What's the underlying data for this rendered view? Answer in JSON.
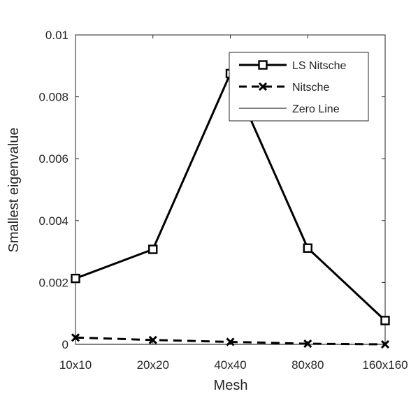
{
  "chart_data": {
    "type": "line",
    "categories": [
      "10x10",
      "20x20",
      "40x40",
      "80x80",
      "160x160"
    ],
    "xlabel": "Mesh",
    "ylabel": "Smallest eigenvalue",
    "ylim": [
      0,
      0.01
    ],
    "yticks": [
      0,
      0.002,
      0.004,
      0.006,
      0.008,
      0.01
    ],
    "ytick_labels": [
      "0",
      "0.002",
      "0.004",
      "0.006",
      "0.008",
      "0.01"
    ],
    "grid": false,
    "legend_position": "top-right",
    "series": [
      {
        "name": "LS Nitsche",
        "values": [
          0.00213,
          0.00307,
          0.00875,
          0.00311,
          0.00077
        ],
        "line_style": "solid",
        "marker": "square",
        "color": "#000000"
      },
      {
        "name": "Nitsche",
        "values": [
          0.00022,
          0.00014,
          8e-05,
          2e-05,
          0.0
        ],
        "line_style": "dashed",
        "marker": "x",
        "color": "#000000"
      },
      {
        "name": "Zero Line",
        "values": [
          0,
          0,
          0,
          0,
          0
        ],
        "line_style": "solid-thin",
        "marker": "none",
        "color": "#000000"
      }
    ]
  }
}
